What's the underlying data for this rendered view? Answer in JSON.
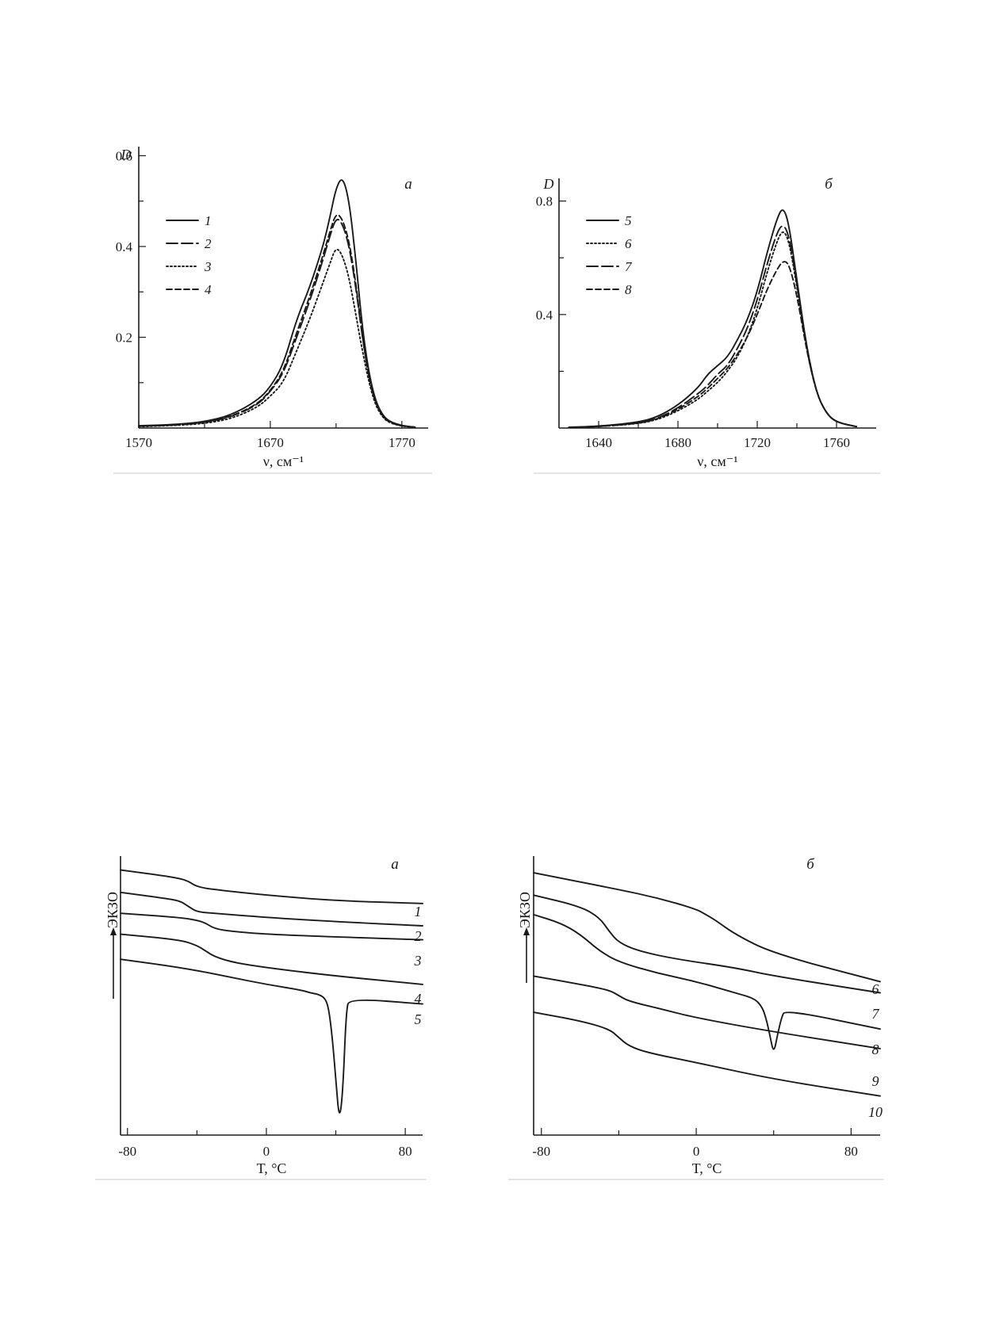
{
  "chart_data": [
    {
      "id": "ir_a",
      "type": "line",
      "panel_label": "а",
      "title": "",
      "xlabel": "ν, см⁻¹",
      "ylabel": "D",
      "xlim": [
        1570,
        1790
      ],
      "ylim": [
        0,
        0.62
      ],
      "xticks": [
        1570,
        1670,
        1770
      ],
      "xminor": [
        1620,
        1720
      ],
      "yticks": [
        0.2,
        0.4,
        0.6
      ],
      "yminor": [
        0.1,
        0.3,
        0.5
      ],
      "grid": false,
      "legend": "top-left",
      "series": [
        {
          "name": "1",
          "dash": "solid",
          "x": [
            1570,
            1600,
            1620,
            1640,
            1660,
            1670,
            1680,
            1690,
            1700,
            1710,
            1715,
            1720,
            1725,
            1730,
            1735,
            1740,
            1745,
            1750,
            1755,
            1760,
            1770,
            1780
          ],
          "y": [
            0.005,
            0.008,
            0.014,
            0.028,
            0.06,
            0.09,
            0.14,
            0.24,
            0.31,
            0.4,
            0.46,
            0.53,
            0.555,
            0.5,
            0.37,
            0.22,
            0.12,
            0.06,
            0.03,
            0.015,
            0.005,
            0.002
          ]
        },
        {
          "name": "2",
          "dash": "longdash",
          "x": [
            1570,
            1600,
            1620,
            1640,
            1660,
            1670,
            1680,
            1690,
            1700,
            1710,
            1715,
            1720,
            1725,
            1730,
            1735,
            1740,
            1745,
            1750,
            1755,
            1760,
            1770,
            1780
          ],
          "y": [
            0.004,
            0.007,
            0.012,
            0.024,
            0.05,
            0.08,
            0.12,
            0.2,
            0.28,
            0.37,
            0.42,
            0.465,
            0.45,
            0.4,
            0.31,
            0.2,
            0.11,
            0.055,
            0.028,
            0.013,
            0.004,
            0.002
          ]
        },
        {
          "name": "3",
          "dash": "dotted",
          "x": [
            1570,
            1600,
            1620,
            1640,
            1660,
            1670,
            1680,
            1690,
            1700,
            1710,
            1715,
            1720,
            1725,
            1730,
            1735,
            1740,
            1745,
            1750,
            1755,
            1760,
            1770,
            1780
          ],
          "y": [
            0.003,
            0.006,
            0.01,
            0.02,
            0.045,
            0.07,
            0.1,
            0.17,
            0.24,
            0.32,
            0.36,
            0.4,
            0.38,
            0.33,
            0.25,
            0.17,
            0.1,
            0.05,
            0.025,
            0.012,
            0.004,
            0.002
          ]
        },
        {
          "name": "4",
          "dash": "dash",
          "x": [
            1570,
            1600,
            1620,
            1640,
            1660,
            1670,
            1680,
            1690,
            1700,
            1710,
            1715,
            1720,
            1725,
            1730,
            1735,
            1740,
            1745,
            1750,
            1755,
            1760,
            1770,
            1780
          ],
          "y": [
            0.004,
            0.007,
            0.012,
            0.025,
            0.052,
            0.082,
            0.125,
            0.21,
            0.29,
            0.38,
            0.43,
            0.475,
            0.46,
            0.41,
            0.32,
            0.2,
            0.11,
            0.055,
            0.028,
            0.013,
            0.004,
            0.002
          ]
        }
      ]
    },
    {
      "id": "ir_b",
      "type": "line",
      "panel_label": "б",
      "title": "",
      "xlabel": "ν, см⁻¹",
      "ylabel": "D",
      "xlim": [
        1620,
        1780
      ],
      "ylim": [
        0,
        0.88
      ],
      "xticks": [
        1640,
        1680,
        1720,
        1760
      ],
      "xminor": [
        1660,
        1700,
        1740
      ],
      "yticks": [
        0.4,
        0.8
      ],
      "yminor": [
        0.2,
        0.6
      ],
      "grid": false,
      "legend": "top-left",
      "series": [
        {
          "name": "5",
          "dash": "solid",
          "x": [
            1625,
            1640,
            1660,
            1670,
            1680,
            1690,
            1695,
            1700,
            1705,
            1710,
            1715,
            1720,
            1725,
            1730,
            1733,
            1736,
            1740,
            1745,
            1750,
            1755,
            1760,
            1770
          ],
          "y": [
            0.003,
            0.006,
            0.02,
            0.04,
            0.08,
            0.14,
            0.19,
            0.22,
            0.25,
            0.31,
            0.38,
            0.48,
            0.62,
            0.74,
            0.78,
            0.72,
            0.52,
            0.28,
            0.12,
            0.05,
            0.02,
            0.005
          ]
        },
        {
          "name": "6",
          "dash": "dotted",
          "x": [
            1625,
            1640,
            1660,
            1670,
            1680,
            1690,
            1695,
            1700,
            1705,
            1710,
            1715,
            1720,
            1725,
            1730,
            1733,
            1736,
            1740,
            1745,
            1750,
            1755,
            1760,
            1770
          ],
          "y": [
            0.002,
            0.005,
            0.015,
            0.03,
            0.06,
            0.1,
            0.13,
            0.16,
            0.2,
            0.25,
            0.32,
            0.42,
            0.55,
            0.66,
            0.7,
            0.66,
            0.5,
            0.27,
            0.12,
            0.05,
            0.02,
            0.005
          ]
        },
        {
          "name": "7",
          "dash": "longdash",
          "x": [
            1625,
            1640,
            1660,
            1670,
            1680,
            1690,
            1695,
            1700,
            1705,
            1710,
            1715,
            1720,
            1725,
            1730,
            1733,
            1736,
            1740,
            1745,
            1750,
            1755,
            1760,
            1770
          ],
          "y": [
            0.002,
            0.005,
            0.017,
            0.034,
            0.07,
            0.12,
            0.15,
            0.19,
            0.22,
            0.28,
            0.35,
            0.45,
            0.58,
            0.69,
            0.72,
            0.68,
            0.51,
            0.28,
            0.12,
            0.05,
            0.02,
            0.005
          ]
        },
        {
          "name": "8",
          "dash": "dash",
          "x": [
            1625,
            1640,
            1660,
            1670,
            1680,
            1690,
            1695,
            1700,
            1705,
            1710,
            1715,
            1720,
            1725,
            1730,
            1733,
            1736,
            1740,
            1745,
            1750,
            1755,
            1760,
            1770
          ],
          "y": [
            0.002,
            0.005,
            0.016,
            0.032,
            0.065,
            0.11,
            0.14,
            0.175,
            0.21,
            0.26,
            0.32,
            0.4,
            0.49,
            0.56,
            0.59,
            0.58,
            0.47,
            0.27,
            0.12,
            0.05,
            0.02,
            0.005
          ]
        }
      ]
    },
    {
      "id": "dsc_a",
      "type": "line",
      "panel_label": "а",
      "title": "",
      "xlabel": "T, °C",
      "ylabel": "ЭКЗО",
      "xlim": [
        -84,
        90
      ],
      "ylim": [
        0,
        100
      ],
      "xticks": [
        -80,
        0,
        80
      ],
      "xminor": [
        -40,
        40
      ],
      "yticks": [],
      "grid": false,
      "legend": "none",
      "series": [
        {
          "name": "1",
          "x": [
            -84,
            -60,
            -50,
            -45,
            -40,
            -30,
            0,
            40,
            90
          ],
          "y": [
            95,
            93,
            92,
            91,
            89,
            88,
            86,
            84,
            83
          ]
        },
        {
          "name": "2",
          "x": [
            -84,
            -60,
            -50,
            -45,
            -40,
            -30,
            0,
            40,
            90
          ],
          "y": [
            87,
            85,
            84,
            82,
            80,
            79.5,
            78,
            76.5,
            75
          ]
        },
        {
          "name": "3",
          "x": [
            -84,
            -50,
            -40,
            -35,
            -30,
            -20,
            0,
            40,
            90
          ],
          "y": [
            79.5,
            78,
            77,
            76,
            74,
            73,
            72,
            71,
            70
          ]
        },
        {
          "name": "4",
          "x": [
            -84,
            -50,
            -40,
            -35,
            -30,
            -20,
            0,
            40,
            90
          ],
          "y": [
            72,
            70,
            68,
            66,
            64,
            62,
            60,
            57,
            54
          ]
        },
        {
          "name": "5",
          "x": [
            -84,
            -60,
            -40,
            -20,
            0,
            20,
            25,
            30,
            34,
            36,
            38,
            40,
            42,
            44,
            46,
            48,
            90
          ],
          "y": [
            63,
            61,
            59,
            56.5,
            54,
            52,
            51,
            50.5,
            49,
            45,
            35,
            20,
            5,
            15,
            45,
            49,
            47
          ]
        }
      ],
      "curve_labels": [
        "1",
        "2",
        "3",
        "4",
        "5"
      ]
    },
    {
      "id": "dsc_b",
      "type": "line",
      "panel_label": "б",
      "title": "",
      "xlabel": "T, °C",
      "ylabel": "ЭКЗО",
      "xlim": [
        -84,
        95
      ],
      "ylim": [
        0,
        100
      ],
      "xticks": [
        -80,
        0,
        80
      ],
      "xminor": [
        -40,
        40
      ],
      "yticks": [],
      "grid": false,
      "legend": "none",
      "series": [
        {
          "name": "6",
          "x": [
            -84,
            -40,
            -20,
            0,
            5,
            10,
            20,
            40,
            95
          ],
          "y": [
            94,
            88,
            85,
            81,
            79,
            77,
            72,
            65,
            55
          ]
        },
        {
          "name": "7",
          "x": [
            -84,
            -60,
            -50,
            -45,
            -40,
            -30,
            -10,
            20,
            40,
            95
          ],
          "y": [
            86,
            82,
            78,
            73,
            69,
            66,
            63,
            60,
            57,
            51
          ]
        },
        {
          "name": "8",
          "x": [
            -84,
            -70,
            -60,
            -50,
            -40,
            -20,
            0,
            20,
            30,
            34,
            36,
            38,
            40,
            42,
            44,
            46,
            95
          ],
          "y": [
            79,
            76,
            72,
            66,
            62,
            58,
            55,
            51,
            49,
            46,
            42,
            36,
            29,
            36,
            42,
            45,
            38
          ]
        },
        {
          "name": "9",
          "x": [
            -84,
            -60,
            -45,
            -40,
            -35,
            -20,
            0,
            40,
            95
          ],
          "y": [
            57,
            54,
            52,
            50,
            48,
            45.5,
            42,
            37,
            31
          ]
        },
        {
          "name": "10",
          "x": [
            -84,
            -60,
            -45,
            -40,
            -35,
            -25,
            0,
            40,
            95
          ],
          "y": [
            44,
            41,
            38,
            35,
            32,
            29.5,
            26,
            20,
            14
          ]
        }
      ],
      "curve_labels": [
        "6",
        "7",
        "8",
        "9",
        "10"
      ]
    }
  ]
}
